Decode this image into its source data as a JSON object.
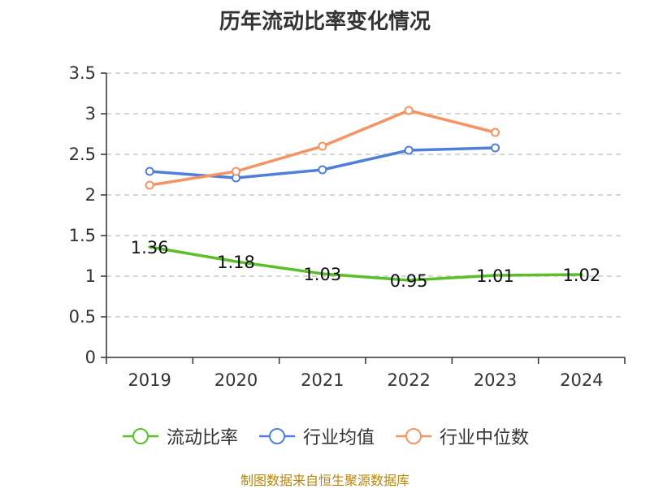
{
  "chart_data": {
    "type": "line",
    "title": "历年流动比率变化情况",
    "categories": [
      "2019",
      "2020",
      "2021",
      "2022",
      "2023",
      "2024"
    ],
    "ylim": [
      0,
      3.5
    ],
    "yticks": [
      "0",
      "0.5",
      "1",
      "1.5",
      "2",
      "2.5",
      "3",
      "3.5"
    ],
    "grid": true,
    "legend_position": "bottom",
    "series": [
      {
        "name": "流动比率",
        "color": "#5cbf2a",
        "values": [
          1.36,
          1.18,
          1.03,
          0.95,
          1.01,
          1.02
        ],
        "labels": [
          "1.36",
          "1.18",
          "1.03",
          "0.95",
          "1.01",
          "1.02"
        ],
        "show_labels": true
      },
      {
        "name": "行业均值",
        "color": "#4f7fd9",
        "values": [
          2.29,
          2.21,
          2.31,
          2.55,
          2.58,
          null
        ]
      },
      {
        "name": "行业中位数",
        "color": "#f59462",
        "values": [
          2.12,
          2.29,
          2.6,
          3.04,
          2.77,
          null
        ]
      }
    ]
  },
  "source_note": "制图数据来自恒生聚源数据库"
}
